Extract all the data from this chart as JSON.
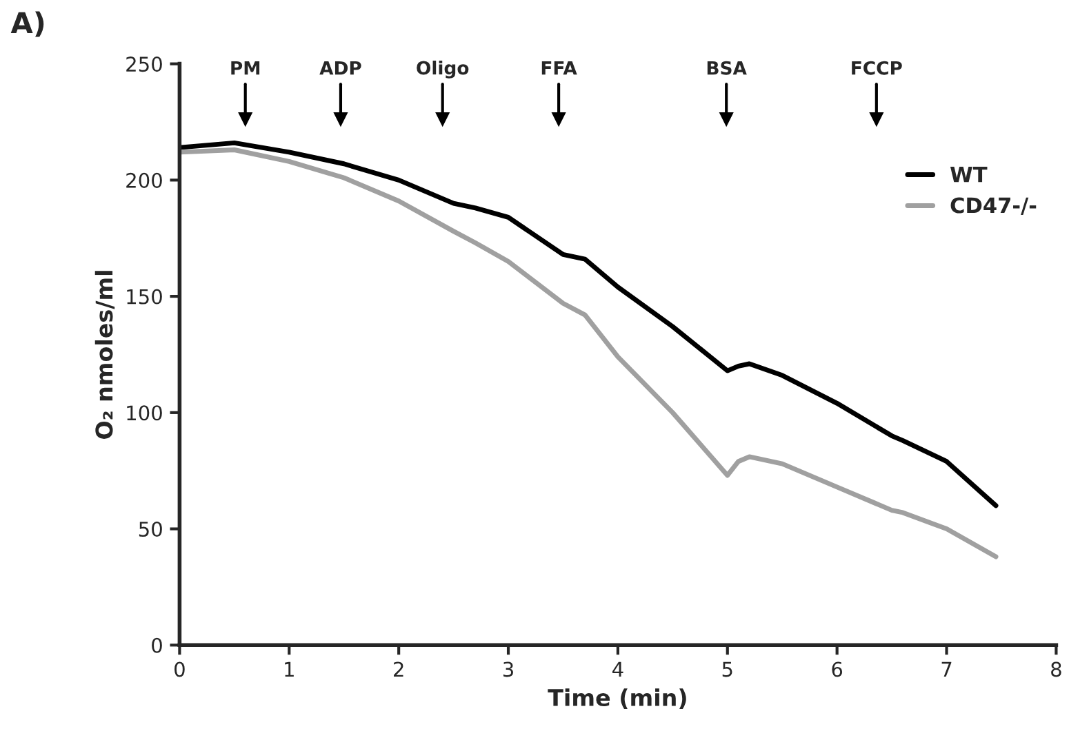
{
  "chart_data": {
    "type": "line",
    "xlabel": "Time (min)",
    "ylabel": "O₂ nmoles/ml",
    "annotations": [
      "A)"
    ],
    "ref_lines": [
      {
        "axis": "x",
        "value": 0.6,
        "label": "PM"
      },
      {
        "axis": "x",
        "value": 1.47,
        "label": "ADP"
      },
      {
        "axis": "x",
        "value": 2.4,
        "label": "Oligo"
      },
      {
        "axis": "x",
        "value": 3.46,
        "label": "FFA"
      },
      {
        "axis": "x",
        "value": 4.99,
        "label": "BSA"
      },
      {
        "axis": "x",
        "value": 6.36,
        "label": "FCCP"
      }
    ],
    "x": [
      0,
      0.5,
      1,
      1.5,
      2,
      2.5,
      2.7,
      3,
      3.5,
      3.7,
      4,
      4.5,
      5,
      5.1,
      5.2,
      5.5,
      6,
      6.5,
      6.6,
      7,
      7.45
    ],
    "series": [
      {
        "name": "WT",
        "color": "#000000",
        "values": [
          214,
          216,
          212,
          207,
          200,
          190,
          188,
          184,
          168,
          166,
          154,
          137,
          118,
          120,
          121,
          116,
          104,
          90,
          88,
          79,
          60
        ]
      },
      {
        "name": "CD47-/-",
        "color": "#a0a0a0",
        "values": [
          212,
          213,
          208,
          201,
          191,
          178,
          173,
          165,
          147,
          142,
          124,
          100,
          73,
          79,
          81,
          78,
          68,
          58,
          57,
          50,
          38
        ]
      }
    ],
    "xlim": [
      0,
      8
    ],
    "ylim": [
      0,
      250
    ],
    "xticks": [
      0,
      1,
      2,
      3,
      4,
      5,
      6,
      7,
      8
    ],
    "yticks": [
      0,
      50,
      100,
      150,
      200,
      250
    ],
    "legend": "right",
    "marker": "none",
    "line_style": "solid",
    "grid": false
  }
}
